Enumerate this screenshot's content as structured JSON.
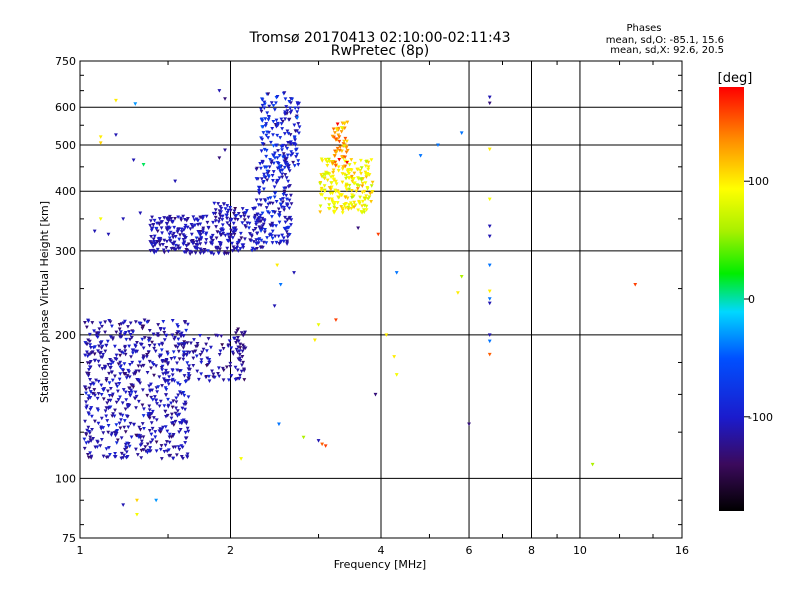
{
  "chart_data": {
    "type": "scatter",
    "title": "Tromsø 20170413 02:10:00-02:11:43",
    "subtitle": "RwPretec (8p)",
    "xlabel": "Frequency [MHz]",
    "ylabel": "Stationary phase Virtual Height [km]",
    "x_scale": "log",
    "y_scale": "log",
    "xlim": [
      1,
      16
    ],
    "ylim": [
      75,
      750
    ],
    "x_ticks": [
      1,
      2,
      4,
      6,
      8,
      10,
      16
    ],
    "x_tick_labels": [
      "1",
      "2",
      "4",
      "6",
      "8",
      "10",
      "16"
    ],
    "y_ticks": [
      75,
      100,
      200,
      300,
      400,
      500,
      600,
      750
    ],
    "y_tick_labels": [
      "75",
      "100",
      "200",
      "300",
      "400",
      "500",
      "600",
      "750"
    ],
    "grid": true,
    "phase_stats": {
      "header": "Phases",
      "o_line": "mean, sd,O: -85.1, 15.6",
      "x_line": "mean, sd,X:  92.6, 20.5"
    },
    "colorbar": {
      "label": "[deg]",
      "range": [
        -180,
        180
      ],
      "ticks": [
        100,
        0,
        -100
      ],
      "tick_labels": [
        "100",
        "0",
        "-100"
      ]
    },
    "clusters": [
      {
        "freq": [
          1.02,
          1.65
        ],
        "height": [
          110,
          215
        ],
        "phase": -110,
        "phase_sd": 12,
        "count": 650
      },
      {
        "freq": [
          1.6,
          2.15
        ],
        "height": [
          160,
          200
        ],
        "phase": -115,
        "phase_sd": 12,
        "count": 90
      },
      {
        "freq": [
          2.05,
          2.15
        ],
        "height": [
          160,
          210
        ],
        "phase": -125,
        "phase_sd": 8,
        "count": 30
      },
      {
        "freq": [
          1.38,
          2.05
        ],
        "height": [
          295,
          355
        ],
        "phase": -110,
        "phase_sd": 10,
        "count": 260
      },
      {
        "freq": [
          1.85,
          2.0
        ],
        "height": [
          355,
          380
        ],
        "phase": -110,
        "phase_sd": 10,
        "count": 20
      },
      {
        "freq": [
          2.0,
          2.35
        ],
        "height": [
          300,
          370
        ],
        "phase": -110,
        "phase_sd": 12,
        "count": 90
      },
      {
        "freq": [
          2.25,
          2.65
        ],
        "height": [
          310,
          460
        ],
        "phase": -100,
        "phase_sd": 15,
        "count": 160
      },
      {
        "freq": [
          2.3,
          2.55
        ],
        "height": [
          430,
          640
        ],
        "phase": -85,
        "phase_sd": 20,
        "count": 90
      },
      {
        "freq": [
          2.55,
          2.75
        ],
        "height": [
          450,
          650
        ],
        "phase": -100,
        "phase_sd": 15,
        "count": 70
      },
      {
        "freq": [
          3.02,
          3.85
        ],
        "height": [
          360,
          470
        ],
        "phase": 95,
        "phase_sd": 15,
        "count": 200
      },
      {
        "freq": [
          3.2,
          3.45
        ],
        "height": [
          450,
          560
        ],
        "phase": 130,
        "phase_sd": 25,
        "count": 60
      }
    ],
    "scatter_points": [
      {
        "x": 1.1,
        "y": 520,
        "phase": 100
      },
      {
        "x": 1.1,
        "y": 505,
        "phase": 110
      },
      {
        "x": 1.18,
        "y": 525,
        "phase": -110
      },
      {
        "x": 1.18,
        "y": 620,
        "phase": 100
      },
      {
        "x": 1.29,
        "y": 610,
        "phase": -30
      },
      {
        "x": 1.28,
        "y": 465,
        "phase": -110
      },
      {
        "x": 1.34,
        "y": 455,
        "phase": 10
      },
      {
        "x": 1.1,
        "y": 350,
        "phase": 90
      },
      {
        "x": 1.22,
        "y": 350,
        "phase": -110
      },
      {
        "x": 1.07,
        "y": 330,
        "phase": -110
      },
      {
        "x": 1.14,
        "y": 325,
        "phase": -110
      },
      {
        "x": 1.32,
        "y": 360,
        "phase": -110
      },
      {
        "x": 1.3,
        "y": 90,
        "phase": 110
      },
      {
        "x": 1.3,
        "y": 84,
        "phase": 90
      },
      {
        "x": 1.22,
        "y": 88,
        "phase": -110
      },
      {
        "x": 1.42,
        "y": 90,
        "phase": -30
      },
      {
        "x": 1.9,
        "y": 650,
        "phase": -110
      },
      {
        "x": 1.95,
        "y": 625,
        "phase": -130
      },
      {
        "x": 1.9,
        "y": 470,
        "phase": -130
      },
      {
        "x": 1.95,
        "y": 488,
        "phase": -120
      },
      {
        "x": 1.55,
        "y": 420,
        "phase": -110
      },
      {
        "x": 2.38,
        "y": 640,
        "phase": -130
      },
      {
        "x": 2.6,
        "y": 590,
        "phase": -110
      },
      {
        "x": 2.72,
        "y": 570,
        "phase": -40
      },
      {
        "x": 2.48,
        "y": 280,
        "phase": 100
      },
      {
        "x": 2.52,
        "y": 255,
        "phase": -40
      },
      {
        "x": 2.45,
        "y": 230,
        "phase": -110
      },
      {
        "x": 2.68,
        "y": 270,
        "phase": -110
      },
      {
        "x": 2.95,
        "y": 195,
        "phase": 100
      },
      {
        "x": 3.0,
        "y": 210,
        "phase": 85
      },
      {
        "x": 3.25,
        "y": 215,
        "phase": 160
      },
      {
        "x": 3.05,
        "y": 118,
        "phase": 150
      },
      {
        "x": 3.1,
        "y": 117,
        "phase": 160
      },
      {
        "x": 3.0,
        "y": 120,
        "phase": -110
      },
      {
        "x": 2.8,
        "y": 122,
        "phase": 60
      },
      {
        "x": 2.1,
        "y": 110,
        "phase": 90
      },
      {
        "x": 2.5,
        "y": 130,
        "phase": -40
      },
      {
        "x": 3.6,
        "y": 335,
        "phase": -130
      },
      {
        "x": 3.95,
        "y": 325,
        "phase": 160
      },
      {
        "x": 4.1,
        "y": 200,
        "phase": 100
      },
      {
        "x": 4.3,
        "y": 270,
        "phase": -40
      },
      {
        "x": 4.25,
        "y": 180,
        "phase": 100
      },
      {
        "x": 4.3,
        "y": 165,
        "phase": 90
      },
      {
        "x": 3.9,
        "y": 150,
        "phase": -130
      },
      {
        "x": 5.2,
        "y": 500,
        "phase": -40
      },
      {
        "x": 4.8,
        "y": 475,
        "phase": -40
      },
      {
        "x": 5.8,
        "y": 530,
        "phase": -40
      },
      {
        "x": 5.8,
        "y": 265,
        "phase": 60
      },
      {
        "x": 5.7,
        "y": 245,
        "phase": 100
      },
      {
        "x": 6.0,
        "y": 130,
        "phase": -130
      },
      {
        "x": 6.6,
        "y": 630,
        "phase": -110
      },
      {
        "x": 6.6,
        "y": 612,
        "phase": -130
      },
      {
        "x": 6.6,
        "y": 490,
        "phase": 100
      },
      {
        "x": 6.6,
        "y": 385,
        "phase": 90
      },
      {
        "x": 6.6,
        "y": 338,
        "phase": -110
      },
      {
        "x": 6.6,
        "y": 322,
        "phase": -110
      },
      {
        "x": 6.6,
        "y": 280,
        "phase": -40
      },
      {
        "x": 6.6,
        "y": 247,
        "phase": 100
      },
      {
        "x": 6.6,
        "y": 238,
        "phase": -40
      },
      {
        "x": 6.6,
        "y": 233,
        "phase": -110
      },
      {
        "x": 6.6,
        "y": 200,
        "phase": -110
      },
      {
        "x": 6.6,
        "y": 194,
        "phase": -40
      },
      {
        "x": 6.6,
        "y": 182,
        "phase": 150
      },
      {
        "x": 10.6,
        "y": 107,
        "phase": 60
      },
      {
        "x": 12.9,
        "y": 255,
        "phase": 160
      }
    ]
  }
}
